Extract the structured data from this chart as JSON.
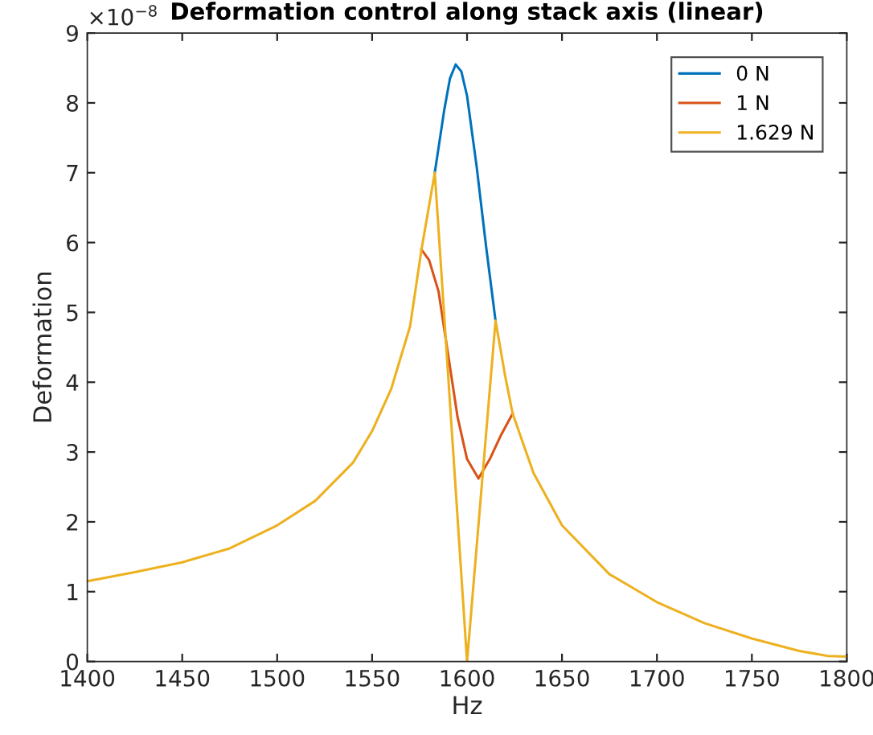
{
  "chart_data": {
    "type": "line",
    "title": "Deformation control along stack axis (linear)",
    "xlabel": "Hz",
    "ylabel": "Deformation",
    "annotations": [
      "×10$^{−8}$"
    ],
    "xlim": [
      1400,
      1800
    ],
    "xticks": [
      1400,
      1450,
      1500,
      1550,
      1600,
      1650,
      1700,
      1750,
      1800
    ],
    "ylim": [
      0,
      9
    ],
    "yticks": [
      0,
      1,
      2,
      3,
      4,
      5,
      6,
      7,
      8,
      9
    ],
    "grid": false,
    "legend": "top right",
    "marker": "none",
    "line_style": "solid",
    "series": [
      {
        "name": "0 N",
        "color": "#0072bd",
        "x": [
          1583,
          1588,
          1591,
          1594,
          1597,
          1600,
          1605,
          1610,
          1615
        ],
        "values": [
          7.0,
          7.9,
          8.35,
          8.55,
          8.45,
          8.1,
          7.1,
          5.95,
          4.88
        ]
      },
      {
        "name": "1 N",
        "color": "#d95319",
        "x": [
          1576,
          1580,
          1585,
          1590,
          1595,
          1600,
          1606,
          1612,
          1618,
          1624
        ],
        "values": [
          5.9,
          5.75,
          5.3,
          4.4,
          3.5,
          2.9,
          2.62,
          2.9,
          3.25,
          3.55
        ]
      },
      {
        "name": "1.629 N",
        "color": "#edb120",
        "x": [
          1400,
          1425,
          1450,
          1475,
          1500,
          1520,
          1540,
          1550,
          1560,
          1570,
          1576,
          1583,
          1600,
          1615,
          1620,
          1624,
          1635,
          1650,
          1675,
          1700,
          1725,
          1750,
          1775,
          1790,
          1800
        ],
        "values": [
          1.15,
          1.28,
          1.42,
          1.62,
          1.95,
          2.3,
          2.85,
          3.3,
          3.9,
          4.8,
          5.9,
          7.0,
          0,
          4.88,
          4.1,
          3.55,
          2.7,
          1.95,
          1.25,
          0.85,
          0.55,
          0.33,
          0.15,
          0.08,
          0.07
        ]
      }
    ]
  }
}
